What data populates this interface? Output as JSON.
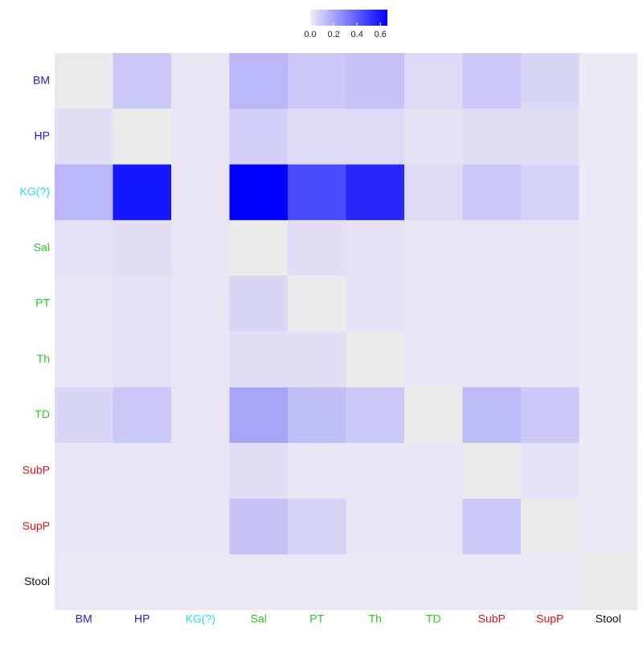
{
  "chart_data": {
    "type": "heatmap",
    "x_categories": [
      "BM",
      "HP",
      "KG(?)",
      "Sal",
      "PT",
      "Th",
      "TD",
      "SubP",
      "SupP",
      "Stool"
    ],
    "y_categories": [
      "BM",
      "HP",
      "KG(?)",
      "Sal",
      "PT",
      "Th",
      "TD",
      "SubP",
      "SupP",
      "Stool"
    ],
    "label_colors": [
      "#1a1adb",
      "#1a1adb",
      "#22e0e8",
      "#22cc22",
      "#22cc22",
      "#22cc22",
      "#22cc22",
      "#dd1111",
      "#dd1111",
      "#111111"
    ],
    "values": [
      [
        null,
        0.1,
        0.02,
        0.15,
        0.1,
        0.12,
        0.05,
        0.1,
        0.06,
        0.01
      ],
      [
        0.04,
        null,
        0.02,
        0.08,
        0.05,
        0.05,
        0.03,
        0.04,
        0.04,
        0.01
      ],
      [
        0.15,
        0.6,
        0.02,
        0.66,
        0.45,
        0.55,
        0.05,
        0.1,
        0.07,
        0.01
      ],
      [
        0.03,
        0.04,
        0.02,
        null,
        0.04,
        0.03,
        0.02,
        0.02,
        0.02,
        0.01
      ],
      [
        0.02,
        0.03,
        0.02,
        0.06,
        null,
        0.03,
        0.02,
        0.02,
        0.02,
        0.01
      ],
      [
        0.02,
        0.03,
        0.02,
        0.04,
        0.04,
        null,
        0.02,
        0.02,
        0.02,
        0.01
      ],
      [
        0.06,
        0.1,
        0.02,
        0.2,
        0.13,
        0.1,
        null,
        0.14,
        0.1,
        0.01
      ],
      [
        0.02,
        0.02,
        0.02,
        0.04,
        0.02,
        0.02,
        0.02,
        null,
        0.03,
        0.01
      ],
      [
        0.02,
        0.02,
        0.02,
        0.12,
        0.07,
        0.02,
        0.02,
        0.1,
        null,
        0.01
      ],
      [
        0.01,
        0.01,
        0.01,
        0.01,
        0.01,
        0.01,
        0.01,
        0.01,
        0.01,
        null
      ]
    ],
    "colorscale": [
      "#efedf5",
      "#0000ff"
    ],
    "empty_color": "#ebebeb",
    "clim": [
      0,
      0.66
    ],
    "colorbar_ticks": [
      {
        "value": 0,
        "label": "0.0"
      },
      0.2,
      0.4,
      0.6
    ]
  }
}
